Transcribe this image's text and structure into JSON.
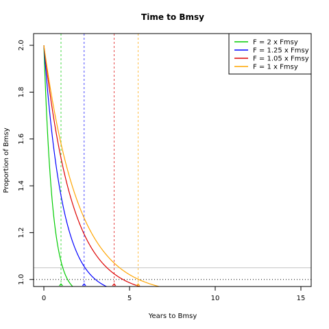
{
  "chart_data": {
    "type": "line",
    "title": "Time to Bmsy",
    "xlabel": "Years to Bmsy",
    "ylabel": "Proportion of Bmsy",
    "xlim": [
      -0.6,
      15.6
    ],
    "ylim": [
      0.97,
      2.05
    ],
    "xticks": [
      0,
      5,
      10,
      15
    ],
    "yticks": [
      1.0,
      1.2,
      1.4,
      1.6,
      1.8,
      2.0
    ],
    "grid": false,
    "legend": "top-right",
    "series": [
      {
        "name": "F = 2 x Fmsy",
        "color": "#00cc00",
        "rate": 2.0,
        "vline": 1.0
      },
      {
        "name": "F = 1.25 x Fmsy",
        "color": "#0000ff",
        "rate": 0.92,
        "vline": 2.35
      },
      {
        "name": "F = 1.05 x Fmsy",
        "color": "#dd0000",
        "rate": 0.6,
        "vline": 4.1
      },
      {
        "name": "F = 1 x Fmsy",
        "color": "#ffa500",
        "rate": 0.5,
        "vline": 5.5
      }
    ],
    "reference_lines": {
      "solid_grey_y": 1.05,
      "dotted_black_y": 1.0
    }
  }
}
